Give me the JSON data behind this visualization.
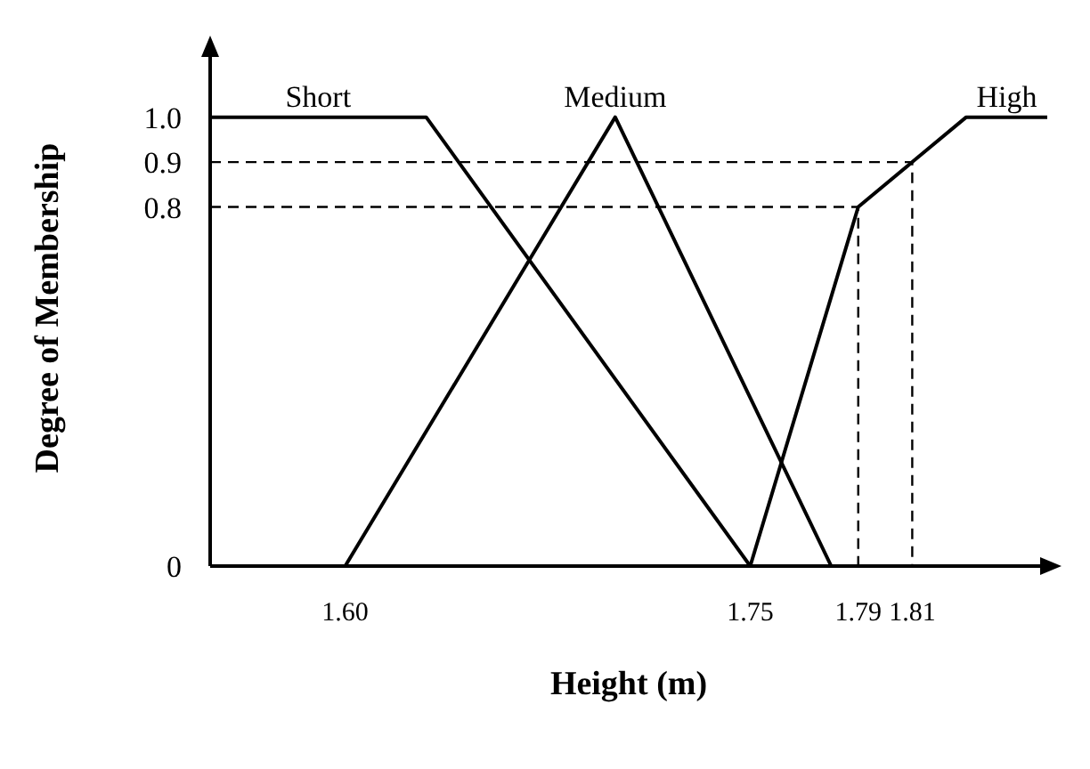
{
  "chart_data": {
    "type": "line",
    "xlabel": "Height (m)",
    "ylabel": "Degree of Membership",
    "xlim": [
      1.55,
      1.86
    ],
    "xticks": [
      {
        "value": 1.6,
        "label": "1.60"
      },
      1.75,
      1.79,
      1.81
    ],
    "ylim": [
      0,
      1.15
    ],
    "yticks": [
      0,
      0.8,
      0.9,
      {
        "value": 1,
        "label": "1.0"
      }
    ],
    "grid": false,
    "legend": false,
    "marker": "none",
    "line_style": "solid",
    "series": [
      {
        "name": "Short",
        "color": "#000000",
        "x": [
          1.55,
          1.63,
          1.75
        ],
        "values": [
          1,
          1,
          0
        ]
      },
      {
        "name": "Medium",
        "color": "#000000",
        "x": [
          1.6,
          1.7,
          1.78
        ],
        "values": [
          0,
          1,
          0
        ]
      },
      {
        "name": "High",
        "color": "#000000",
        "x": [
          1.75,
          1.79,
          1.81,
          1.83,
          1.86
        ],
        "values": [
          0,
          0.8,
          0.9,
          1,
          1
        ]
      },
      {
        "color": "#000000",
        "line_style": "dashed",
        "x": [
          1.55,
          1.81,
          1.81
        ],
        "values": [
          0.9,
          0.9,
          0
        ]
      },
      {
        "color": "#000000",
        "line_style": "dashed",
        "x": [
          1.55,
          1.79,
          1.79
        ],
        "values": [
          0.8,
          0.8,
          0
        ]
      }
    ]
  }
}
